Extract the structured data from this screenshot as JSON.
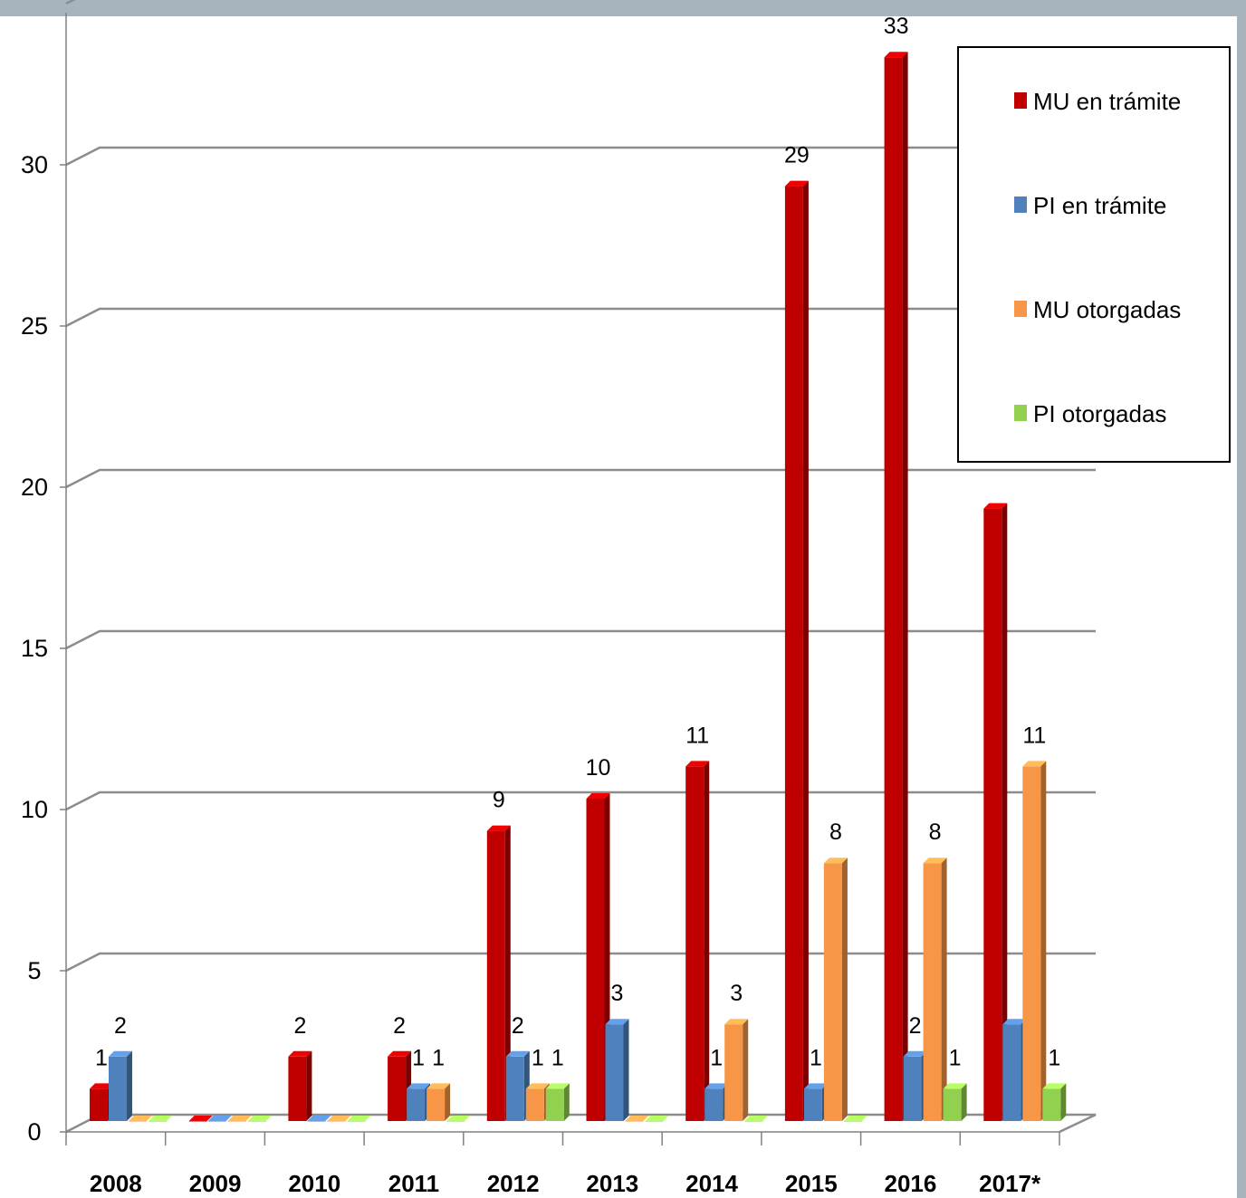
{
  "chart_data": {
    "type": "bar",
    "title": "",
    "xlabel": "",
    "ylabel": "",
    "categories": [
      "2008",
      "2009",
      "2010",
      "2011",
      "2012",
      "2013",
      "2014",
      "2015",
      "2016",
      "2017*"
    ],
    "series": [
      {
        "name": "MU en trámite",
        "color": "#c00000",
        "values": [
          1,
          0,
          2,
          2,
          9,
          10,
          11,
          29,
          33,
          19
        ],
        "labels": [
          "1",
          "",
          "2",
          "2",
          "9",
          "10",
          "11",
          "29",
          "33",
          ""
        ]
      },
      {
        "name": "PI en trámite",
        "color": "#4f81bd",
        "values": [
          2,
          0,
          0,
          1,
          2,
          3,
          1,
          1,
          2,
          3
        ],
        "labels": [
          "2",
          "",
          "",
          "1",
          "2",
          "3",
          "1",
          "1",
          "2",
          ""
        ]
      },
      {
        "name": "MU otorgadas",
        "color": "#f79646",
        "values": [
          0,
          0,
          0,
          1,
          1,
          0,
          3,
          8,
          8,
          11
        ],
        "labels": [
          "",
          "",
          "",
          "1",
          "1",
          "",
          "3",
          "8",
          "8",
          "11"
        ]
      },
      {
        "name": "PI otorgadas",
        "color": "#92d050",
        "values": [
          0,
          0,
          0,
          0,
          1,
          0,
          0,
          0,
          1,
          1
        ],
        "labels": [
          "",
          "",
          "",
          "",
          "1",
          "",
          "",
          "",
          "1",
          "1"
        ]
      }
    ],
    "y_ticks": [
      "0",
      "5",
      "10",
      "15",
      "20",
      "25",
      "30"
    ],
    "ylim": [
      0,
      35
    ],
    "grid": true,
    "legend": {
      "placement": "top-right"
    }
  }
}
